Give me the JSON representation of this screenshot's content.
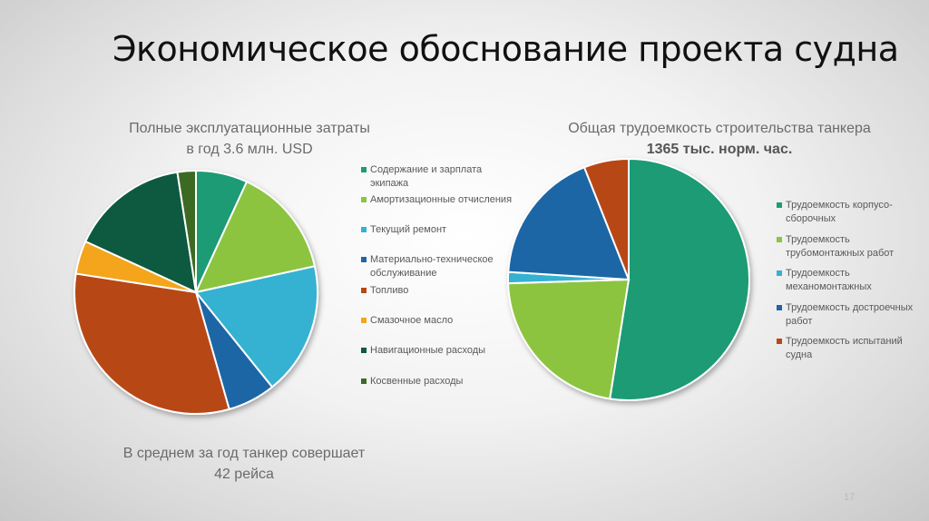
{
  "slide": {
    "title": "Экономическое обоснование проекта судна",
    "footnote_line1": "В среднем за год танкер совершает",
    "footnote_line2": "42 рейса",
    "page_number": "17"
  },
  "chart_data": [
    {
      "type": "pie",
      "title_line1": "Полные эксплуатационные затраты",
      "title_line2": "в год 3.6  млн. USD",
      "slices": [
        {
          "label": "Содержание и зарплата экипажа",
          "value": 7.0,
          "color": "#1f9b75"
        },
        {
          "label": "Амортизационные отчисления",
          "value": 15.0,
          "color": "#8cc43f"
        },
        {
          "label": "Текущий ремонт",
          "value": 18.0,
          "color": "#35b1d1"
        },
        {
          "label": "Материально-техническое обслуживание",
          "value": 6.5,
          "color": "#1f66a6"
        },
        {
          "label": "Топливо",
          "value": 32.5,
          "color": "#b84717"
        },
        {
          "label": "Смазочное масло",
          "value": 4.5,
          "color": "#f4a51c"
        },
        {
          "label": "Навигационные расходы",
          "value": 16.0,
          "color": "#0f5a40"
        },
        {
          "label": "Косвенные расходы",
          "value": 2.5,
          "color": "#3c6a22"
        }
      ]
    },
    {
      "type": "pie",
      "title_line1": "Общая трудоемкость строительства танкера",
      "title_line2": "1365 тыс. норм. час.",
      "slices": [
        {
          "label": "Трудоемкость корпусо-сборочных",
          "value": 52.5,
          "color": "#1f9b75"
        },
        {
          "label": "Трудоемкость трубомонтажных работ",
          "value": 22.0,
          "color": "#8cc43f"
        },
        {
          "label": "Трудоемкость механомонтажных",
          "value": 1.5,
          "color": "#35b1d1"
        },
        {
          "label": "Трудоемкость достроечных работ",
          "value": 18.0,
          "color": "#1f66a6"
        },
        {
          "label": "Трудоемкость испытаний судна",
          "value": 6.0,
          "color": "#b84717"
        }
      ]
    }
  ]
}
